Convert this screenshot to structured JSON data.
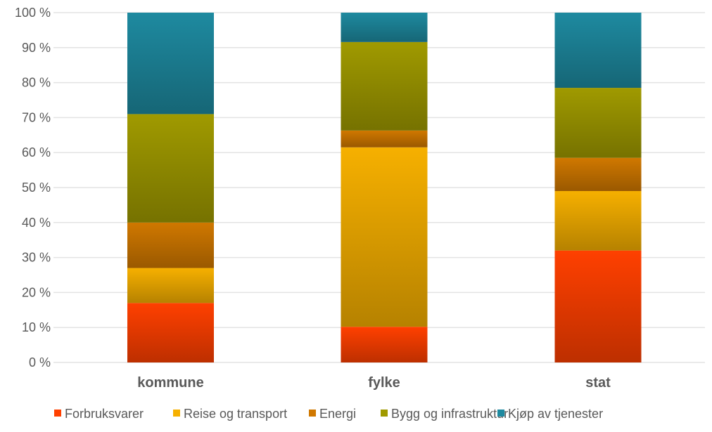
{
  "chart_data": {
    "type": "bar",
    "stacked": "percent",
    "categories": [
      "kommune",
      "fylke",
      "stat"
    ],
    "series": [
      {
        "name": "Forbruksvarer",
        "values": [
          17,
          10.2,
          32
        ],
        "color": "#ff4000"
      },
      {
        "name": "Reise og transport",
        "values": [
          10,
          51.3,
          17
        ],
        "color": "#f6b000"
      },
      {
        "name": "Energi",
        "values": [
          13,
          4.8,
          9.5
        ],
        "color": "#d07800"
      },
      {
        "name": "Bygg og infrastruktur",
        "values": [
          31,
          25.3,
          20
        ],
        "color": "#a09a00"
      },
      {
        "name": "Kjøp av tjenester",
        "values": [
          29,
          8.4,
          21.5
        ],
        "color": "#1e8aa0"
      }
    ],
    "ylim": [
      0,
      100
    ],
    "yticks": [
      "0 %",
      "10 %",
      "20 %",
      "30 %",
      "40 %",
      "50 %",
      "60 %",
      "70 %",
      "80 %",
      "90 %",
      "100 %"
    ],
    "grid": true,
    "legend": "bottom",
    "xlabel": "",
    "ylabel": ""
  }
}
